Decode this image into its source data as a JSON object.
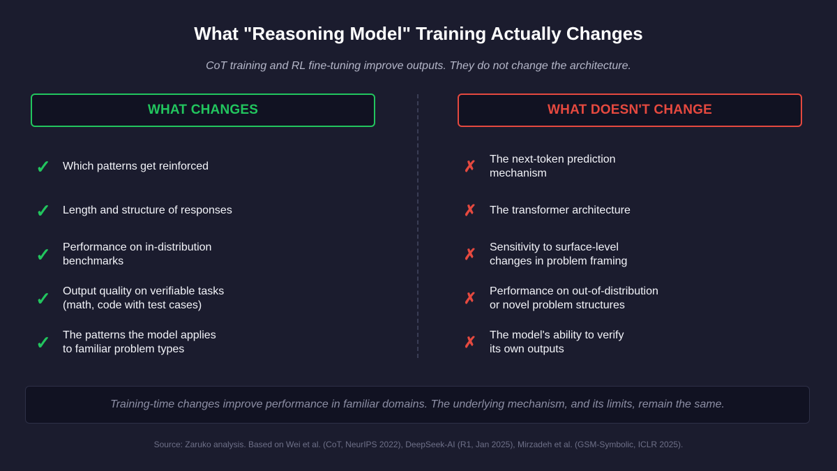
{
  "title": "What \"Reasoning Model\" Training Actually Changes",
  "subtitle": "CoT training and RL fine-tuning improve outputs. They do not change the architecture.",
  "colors": {
    "background": "#1b1c2e",
    "changes_accent": "#22c55e",
    "unchanged_accent": "#e5493f"
  },
  "changes": {
    "header": "WHAT CHANGES",
    "icon": "check-mark-icon",
    "symbol": "✓",
    "items": [
      "Which patterns get reinforced",
      "Length and structure of responses",
      "Performance on in-distribution\nbenchmarks",
      "Output quality on verifiable tasks\n(math, code with test cases)",
      "The patterns the model applies\nto familiar problem types"
    ]
  },
  "unchanged": {
    "header": "WHAT DOESN'T CHANGE",
    "icon": "cross-mark-icon",
    "symbol": "✗",
    "items": [
      "The next-token prediction\nmechanism",
      "The transformer architecture",
      "Sensitivity to surface-level\nchanges in problem framing",
      "Performance on out-of-distribution\nor novel problem structures",
      "The model's ability to verify\nits own outputs"
    ]
  },
  "summary": "Training-time changes improve performance in familiar domains. The underlying mechanism, and its limits, remain the same.",
  "source": "Source: Zaruko analysis. Based on Wei et al. (CoT, NeurIPS 2022), DeepSeek-AI (R1, Jan 2025), Mirzadeh et al. (GSM-Symbolic, ICLR 2025)."
}
